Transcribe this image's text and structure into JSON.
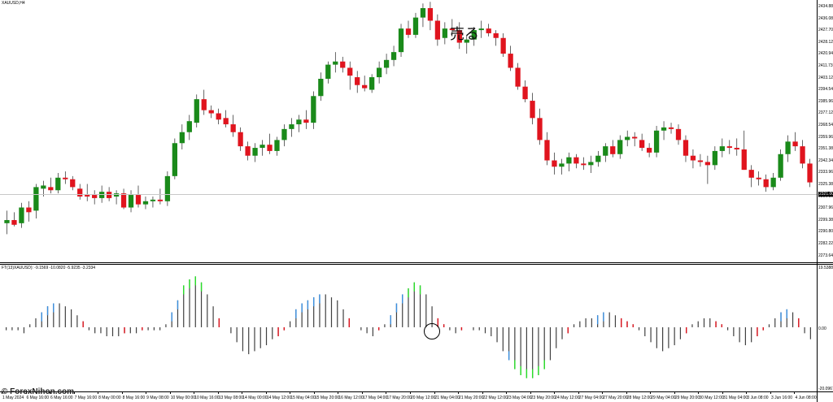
{
  "chart": {
    "symbol_title": "XAUUSD,H4",
    "annotation_sell": "売る",
    "indicator_title": "FT(13)XAUUSD): -9.1569 -10.0820 -5.9235 -3.2334",
    "watermark": "© ForexNihon.com",
    "current_price_label": "2321.00"
  },
  "colors": {
    "bull_candle": "#1a8a1a",
    "bear_candle": "#e0141e",
    "wick": "#000000",
    "hist_neutral": "#404040",
    "hist_up": "#3a8fe0",
    "hist_strong": "#28e028",
    "hist_red": "#e0141e",
    "current_line": "#c8c8c8"
  },
  "price_axis": [
    "2434.880",
    "2436.080",
    "2427.700",
    "2428.120",
    "2420.940",
    "2411.730",
    "2403.120",
    "2394.540",
    "2385.960",
    "2377.120",
    "2368.540",
    "2359.960",
    "2351.380",
    "2342.340",
    "2333.960",
    "2325.380",
    "2316.800",
    "2307.960",
    "2299.380",
    "2290.800",
    "2282.220",
    "2273.640"
  ],
  "indicator_axis": [
    "19.5388",
    "0.00",
    "-20.0967"
  ],
  "time_axis": [
    "1 May 2024",
    "6 May 16:00",
    "6 May 16:00",
    "7 May 16:00",
    "8 May 00:00",
    "8 May 16:00",
    "9 May 08:00",
    "10 May 00:00",
    "10 May 16:00",
    "13 May 08:00",
    "14 May 00:00",
    "14 May 12:00",
    "15 May 04:00",
    "15 May 20:00",
    "16 May 12:00",
    "17 May 04:00",
    "17 May 20:00",
    "20 May 12:00",
    "21 May 04:00",
    "21 May 20:00",
    "22 May 12:00",
    "23 May 04:00",
    "23 May 20:00",
    "24 May 12:00",
    "27 May 04:00",
    "27 May 20:00",
    "28 May 12:00",
    "29 May 04:00",
    "29 May 20:00",
    "30 May 12:00",
    "31 May 04:00",
    "3 Jun 08:00",
    "3 Jun 16:00",
    "4 Jun 08:00"
  ],
  "chart_data": {
    "type": "candlestick",
    "ylim": [
      2273.64,
      2436.08
    ],
    "candles": [
      [
        2297,
        2305,
        2290,
        2299
      ],
      [
        2299,
        2304,
        2295,
        2296
      ],
      [
        2297,
        2310,
        2294,
        2307
      ],
      [
        2307,
        2311,
        2298,
        2304
      ],
      [
        2305,
        2322,
        2300,
        2320
      ],
      [
        2319,
        2324,
        2314,
        2321
      ],
      [
        2320,
        2326,
        2316,
        2318
      ],
      [
        2318,
        2329,
        2316,
        2326
      ],
      [
        2326,
        2330,
        2322,
        2325
      ],
      [
        2325,
        2327,
        2318,
        2320
      ],
      [
        2319,
        2322,
        2312,
        2314
      ],
      [
        2315,
        2322,
        2311,
        2314
      ],
      [
        2315,
        2318,
        2309,
        2313
      ],
      [
        2313,
        2321,
        2310,
        2317
      ],
      [
        2317,
        2320,
        2311,
        2313
      ],
      [
        2314,
        2318,
        2309,
        2316
      ],
      [
        2316,
        2319,
        2306,
        2307
      ],
      [
        2307,
        2318,
        2304,
        2315
      ],
      [
        2315,
        2321,
        2307,
        2309
      ],
      [
        2309,
        2314,
        2306,
        2311
      ],
      [
        2311,
        2314,
        2307,
        2312
      ],
      [
        2312,
        2319,
        2309,
        2311
      ],
      [
        2311,
        2330,
        2308,
        2327
      ],
      [
        2327,
        2351,
        2325,
        2348
      ],
      [
        2348,
        2360,
        2344,
        2355
      ],
      [
        2355,
        2366,
        2350,
        2362
      ],
      [
        2361,
        2379,
        2358,
        2376
      ],
      [
        2376,
        2382,
        2366,
        2369
      ],
      [
        2369,
        2372,
        2364,
        2367
      ],
      [
        2367,
        2370,
        2360,
        2363
      ],
      [
        2364,
        2369,
        2358,
        2360
      ],
      [
        2360,
        2366,
        2352,
        2355
      ],
      [
        2355,
        2358,
        2343,
        2346
      ],
      [
        2346,
        2349,
        2337,
        2340
      ],
      [
        2340,
        2348,
        2336,
        2345
      ],
      [
        2345,
        2350,
        2340,
        2347
      ],
      [
        2347,
        2354,
        2341,
        2343
      ],
      [
        2343,
        2352,
        2340,
        2350
      ],
      [
        2350,
        2360,
        2346,
        2357
      ],
      [
        2357,
        2364,
        2352,
        2360
      ],
      [
        2360,
        2366,
        2355,
        2363
      ],
      [
        2363,
        2369,
        2357,
        2361
      ],
      [
        2361,
        2381,
        2357,
        2378
      ],
      [
        2378,
        2393,
        2375,
        2389
      ],
      [
        2389,
        2400,
        2386,
        2398
      ],
      [
        2398,
        2406,
        2393,
        2400
      ],
      [
        2400,
        2403,
        2393,
        2396
      ],
      [
        2396,
        2400,
        2382,
        2391
      ],
      [
        2390,
        2394,
        2380,
        2385
      ],
      [
        2385,
        2391,
        2381,
        2383
      ],
      [
        2382,
        2392,
        2380,
        2390
      ],
      [
        2390,
        2400,
        2386,
        2396
      ],
      [
        2396,
        2405,
        2392,
        2401
      ],
      [
        2401,
        2410,
        2397,
        2406
      ],
      [
        2406,
        2424,
        2403,
        2421
      ],
      [
        2421,
        2426,
        2415,
        2417
      ],
      [
        2417,
        2431,
        2415,
        2428
      ],
      [
        2428,
        2437,
        2422,
        2434
      ],
      [
        2434,
        2438,
        2420,
        2426
      ],
      [
        2426,
        2430,
        2410,
        2414
      ],
      [
        2415,
        2425,
        2411,
        2421
      ],
      [
        2421,
        2427,
        2416,
        2420
      ],
      [
        2420,
        2425,
        2408,
        2412
      ],
      [
        2412,
        2417,
        2405,
        2414
      ],
      [
        2414,
        2422,
        2410,
        2420
      ],
      [
        2420,
        2426,
        2415,
        2421
      ],
      [
        2421,
        2424,
        2416,
        2418
      ],
      [
        2418,
        2420,
        2410,
        2415
      ],
      [
        2415,
        2418,
        2403,
        2405
      ],
      [
        2405,
        2410,
        2394,
        2396
      ],
      [
        2396,
        2399,
        2382,
        2384
      ],
      [
        2384,
        2388,
        2374,
        2376
      ],
      [
        2375,
        2380,
        2360,
        2364
      ],
      [
        2364,
        2370,
        2347,
        2350
      ],
      [
        2350,
        2355,
        2334,
        2337
      ],
      [
        2337,
        2342,
        2328,
        2333
      ],
      [
        2333,
        2338,
        2328,
        2335
      ],
      [
        2335,
        2342,
        2330,
        2339
      ],
      [
        2339,
        2341,
        2332,
        2335
      ],
      [
        2335,
        2339,
        2331,
        2334
      ],
      [
        2334,
        2340,
        2329,
        2336
      ],
      [
        2336,
        2343,
        2333,
        2340
      ],
      [
        2340,
        2348,
        2336,
        2346
      ],
      [
        2346,
        2350,
        2339,
        2341
      ],
      [
        2341,
        2353,
        2338,
        2350
      ],
      [
        2350,
        2356,
        2346,
        2352
      ],
      [
        2352,
        2355,
        2346,
        2351
      ],
      [
        2350,
        2354,
        2343,
        2345
      ],
      [
        2345,
        2348,
        2339,
        2342
      ],
      [
        2342,
        2359,
        2339,
        2356
      ],
      [
        2356,
        2362,
        2350,
        2358
      ],
      [
        2358,
        2361,
        2354,
        2357
      ],
      [
        2357,
        2360,
        2347,
        2350
      ],
      [
        2350,
        2353,
        2336,
        2340
      ],
      [
        2340,
        2344,
        2332,
        2337
      ],
      [
        2337,
        2341,
        2333,
        2336
      ],
      [
        2336,
        2340,
        2322,
        2334
      ],
      [
        2334,
        2346,
        2331,
        2343
      ],
      [
        2343,
        2351,
        2339,
        2346
      ],
      [
        2346,
        2350,
        2341,
        2345
      ],
      [
        2345,
        2351,
        2340,
        2344
      ],
      [
        2344,
        2356,
        2331,
        2331
      ],
      [
        2331,
        2334,
        2320,
        2326
      ],
      [
        2326,
        2330,
        2321,
        2325
      ],
      [
        2325,
        2328,
        2317,
        2320
      ],
      [
        2320,
        2329,
        2318,
        2326
      ],
      [
        2326,
        2344,
        2324,
        2341
      ],
      [
        2341,
        2353,
        2336,
        2349
      ],
      [
        2349,
        2355,
        2343,
        2346
      ],
      [
        2346,
        2350,
        2332,
        2335
      ],
      [
        2335,
        2338,
        2320,
        2323
      ]
    ],
    "oscillator": {
      "zero": 0,
      "ylim": [
        -20.0967,
        19.5388
      ],
      "values": [
        -1,
        -1,
        -1,
        -2,
        1,
        3,
        5,
        7,
        8,
        8,
        7,
        6,
        4,
        2,
        -1,
        -2,
        -2,
        -3,
        -3,
        -3,
        -2,
        -2,
        -2,
        -1,
        -1,
        -1,
        -1,
        1,
        5,
        9,
        14,
        16,
        17,
        15,
        11,
        7,
        3,
        0,
        -2,
        -5,
        -8,
        -9,
        -8,
        -7,
        -6,
        -4,
        -3,
        -1,
        2,
        6,
        8,
        9,
        10,
        11,
        11,
        10,
        9,
        6,
        3,
        0,
        -1,
        -2,
        -3,
        -1,
        1,
        4,
        8,
        11,
        13,
        15,
        14,
        11,
        7,
        3,
        1,
        -1,
        -2,
        -1,
        0,
        -1,
        -1,
        -2,
        -3,
        -5,
        -8,
        -11,
        -14,
        -16,
        -17,
        -17,
        -16,
        -14,
        -11,
        -7,
        -4,
        -2,
        1,
        2,
        3,
        3,
        4,
        5,
        5,
        4,
        3,
        2,
        1,
        -1,
        -3,
        -5,
        -7,
        -8,
        -7,
        -6,
        -4,
        -2,
        1,
        2,
        3,
        3,
        2,
        1,
        -1,
        -3,
        -5,
        -6,
        -5,
        -3,
        -1,
        1,
        3,
        5,
        6,
        5,
        3,
        -2,
        -4
      ]
    },
    "sell_marker_index": 63
  }
}
